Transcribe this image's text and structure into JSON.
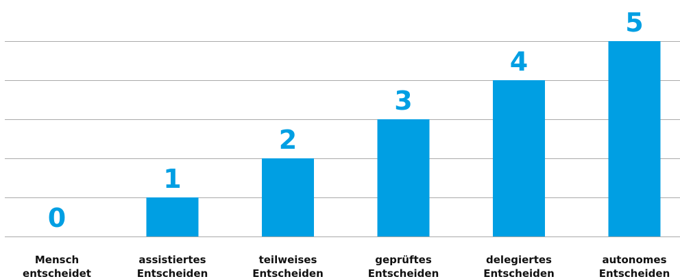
{
  "chart_data": {
    "type": "bar",
    "title": "",
    "xlabel": "",
    "ylabel": "",
    "ylim": [
      0,
      5
    ],
    "grid": true,
    "bar_color": "#009fe3",
    "label_color": "#009fe3",
    "categories": [
      [
        "Mensch",
        "entscheidet"
      ],
      [
        "assistiertes",
        "Entscheiden"
      ],
      [
        "teilweises",
        "Entscheiden"
      ],
      [
        "geprüftes",
        "Entscheiden"
      ],
      [
        "delegiertes",
        "Entscheiden"
      ],
      [
        "autonomes",
        "Entscheiden"
      ]
    ],
    "values": [
      0,
      1,
      2,
      3,
      4,
      5
    ],
    "data_labels": [
      "0",
      "1",
      "2",
      "3",
      "4",
      "5"
    ]
  }
}
